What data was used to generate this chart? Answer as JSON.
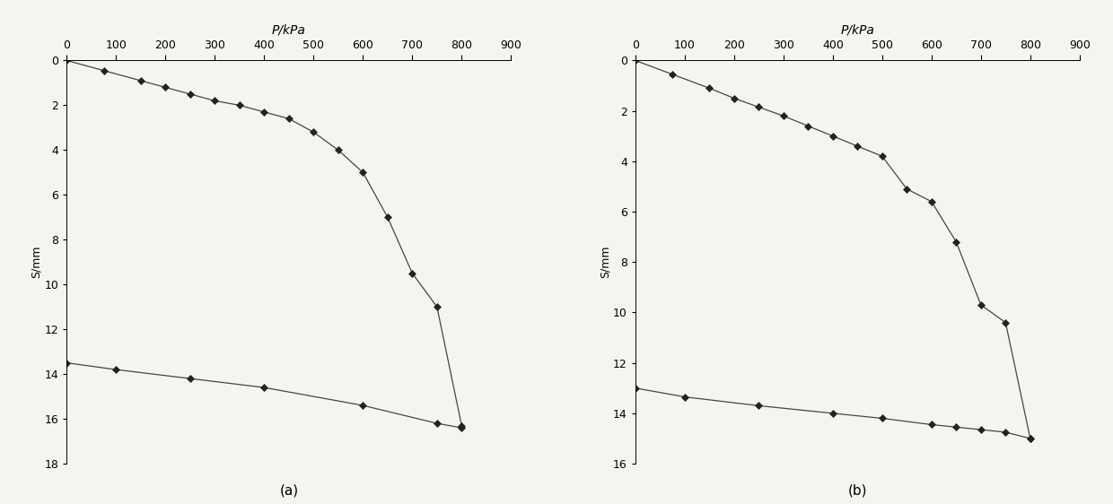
{
  "chart_a": {
    "title_x": "P/kPa",
    "ylabel": "S/mm",
    "xlim": [
      0,
      900
    ],
    "ylim": [
      18,
      0
    ],
    "xticks": [
      0,
      100,
      200,
      300,
      400,
      500,
      600,
      700,
      800,
      900
    ],
    "yticks": [
      0,
      2,
      4,
      6,
      8,
      10,
      12,
      14,
      16,
      18
    ],
    "curve1_x": [
      0,
      75,
      150,
      200,
      250,
      300,
      350,
      400,
      450,
      500,
      550,
      600,
      650,
      700,
      750,
      800
    ],
    "curve1_y": [
      0,
      0.45,
      0.9,
      1.2,
      1.5,
      1.8,
      2.0,
      2.3,
      2.6,
      3.2,
      4.0,
      5.0,
      7.0,
      9.5,
      11.0,
      16.3
    ],
    "curve2_x": [
      0,
      100,
      250,
      400,
      600,
      750,
      800
    ],
    "curve2_y": [
      13.5,
      13.8,
      14.2,
      14.6,
      15.4,
      16.2,
      16.4
    ],
    "label": "(a)"
  },
  "chart_b": {
    "title_x": "P/kPa",
    "ylabel": "S/mm",
    "xlim": [
      0,
      900
    ],
    "ylim": [
      16,
      0
    ],
    "xticks": [
      0,
      100,
      200,
      300,
      400,
      500,
      600,
      700,
      800,
      900
    ],
    "yticks": [
      0,
      2,
      4,
      6,
      8,
      10,
      12,
      14,
      16
    ],
    "curve1_x": [
      0,
      75,
      150,
      200,
      250,
      300,
      350,
      400,
      450,
      500,
      550,
      600,
      650,
      700,
      750,
      800
    ],
    "curve1_y": [
      0,
      0.55,
      1.1,
      1.5,
      1.85,
      2.2,
      2.6,
      3.0,
      3.4,
      3.8,
      5.1,
      5.6,
      7.2,
      9.7,
      10.4,
      15.0
    ],
    "curve2_x": [
      0,
      100,
      250,
      400,
      500,
      600,
      650,
      700,
      750,
      800
    ],
    "curve2_y": [
      13.0,
      13.35,
      13.7,
      14.0,
      14.2,
      14.45,
      14.55,
      14.65,
      14.75,
      15.0
    ],
    "label": "(b)"
  },
  "line_color": "#444444",
  "marker": "D",
  "markersize": 4,
  "markercolor": "#222222",
  "bg_color": "#f5f5f0",
  "label_fontsize": 11
}
